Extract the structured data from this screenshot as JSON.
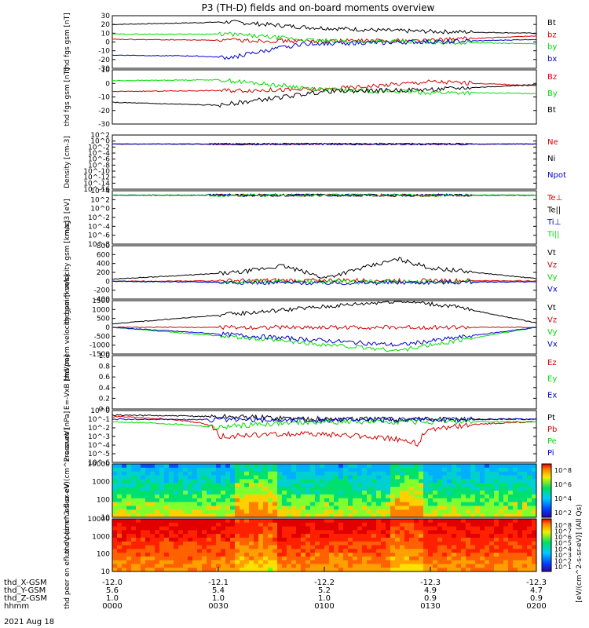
{
  "title": "P3 (TH-D) fields and on-board moments overview",
  "date_label": "2021 Aug 18",
  "colorbar_label": "[eV/(cm^2-s-sr-eV)] (All Qs)",
  "colors": {
    "black": "#000000",
    "red": "#d40000",
    "green": "#00dd00",
    "blue": "#0000cc"
  },
  "ephemeris": {
    "rows": [
      {
        "label": "thd_X-GSM",
        "values": [
          "-12.0",
          "-12.1",
          "-12.2",
          "-12.3",
          "-12.3"
        ]
      },
      {
        "label": "thd_Y-GSM",
        "values": [
          "5.6",
          "5.4",
          "5.2",
          "4.9",
          "4.7"
        ]
      },
      {
        "label": "thd_Z-GSM",
        "values": [
          "1.0",
          "1.0",
          "1.0",
          "0.9",
          "0.9"
        ]
      },
      {
        "label": "hhmm",
        "values": [
          "0000",
          "0030",
          "0100",
          "0130",
          "0200"
        ]
      }
    ]
  },
  "chart_data": [
    {
      "type": "line",
      "ylabel": "thd fgs gsm [nT]",
      "ylim": [
        -30,
        30
      ],
      "yticks": [
        "30",
        "20",
        "10",
        "0",
        "-10",
        "-20",
        "-30"
      ],
      "x_hours": [
        0,
        0.5,
        1.0,
        1.5,
        2.0
      ],
      "series": [
        {
          "name": "Bt",
          "color": "#000000",
          "x": [
            0,
            0.4,
            0.55,
            0.9,
            1.3,
            1.5,
            2.0
          ],
          "y": [
            20,
            22,
            23,
            17,
            13,
            12,
            10
          ]
        },
        {
          "name": "bz",
          "color": "#d40000",
          "x": [
            0,
            0.55,
            0.9,
            1.5,
            2.0
          ],
          "y": [
            3,
            2,
            1,
            2,
            7
          ]
        },
        {
          "name": "by",
          "color": "#00dd00",
          "x": [
            0,
            0.55,
            1.0,
            1.5,
            2.0
          ],
          "y": [
            9,
            9,
            1,
            0,
            -2
          ]
        },
        {
          "name": "bx",
          "color": "#0000cc",
          "x": [
            0,
            0.4,
            0.55,
            0.9,
            1.5,
            2.0
          ],
          "y": [
            -15,
            -16,
            -18,
            -2,
            0,
            3
          ]
        }
      ]
    },
    {
      "type": "line",
      "ylabel": "thd fgs gsm [nT]",
      "ylim": [
        -35,
        20
      ],
      "yticks": [
        "10",
        "0",
        "-10",
        "-20",
        "-30"
      ],
      "x_hours": [
        0,
        0.5,
        1.0,
        1.5,
        2.0
      ],
      "series": [
        {
          "name": "Bz",
          "color": "#d40000",
          "x": [
            0,
            0.5,
            1.0,
            1.5,
            2.0
          ],
          "y": [
            -2,
            -1,
            0,
            8,
            4
          ]
        },
        {
          "name": "By",
          "color": "#00dd00",
          "x": [
            0,
            0.5,
            1.0,
            1.5,
            2.0
          ],
          "y": [
            9,
            10,
            0,
            -3,
            -4
          ]
        },
        {
          "name": "Bt",
          "color": "#000000",
          "x": [
            0,
            0.5,
            1.0,
            1.5,
            2.0
          ],
          "y": [
            -13,
            -16,
            -2,
            0,
            5
          ]
        }
      ]
    },
    {
      "type": "line",
      "ylabel": "Density [cm-3]",
      "scale": "log",
      "yticks": [
        "10^2",
        "10^0",
        "10^-2",
        "10^-4",
        "10^-6",
        "10^-8",
        "10^-10",
        "10^-12",
        "10^-14",
        "10^-16"
      ],
      "series": [
        {
          "name": "Ne",
          "color": "#d40000",
          "x": [
            0,
            2.0
          ],
          "y": [
            0.1,
            0.1
          ]
        },
        {
          "name": "Ni",
          "color": "#000000",
          "x": [
            0,
            2.0
          ],
          "y": [
            0.1,
            0.1
          ]
        },
        {
          "name": "Npot",
          "color": "#0000cc",
          "x": [
            0,
            2.0
          ],
          "y": [
            0.1,
            0.1
          ]
        }
      ]
    },
    {
      "type": "line",
      "ylabel": "mag3 [eV]",
      "scale": "log",
      "yticks": [
        "10^4",
        "10^2",
        "10^0",
        "10^-2",
        "10^-4",
        "10^-6",
        "10^-8"
      ],
      "series": [
        {
          "name": "Te⊥",
          "color": "#d40000",
          "x": [
            0,
            2.0
          ],
          "y": [
            1000,
            1000
          ]
        },
        {
          "name": "Te||",
          "color": "#000000",
          "x": [
            0,
            2.0
          ],
          "y": [
            1000,
            1000
          ]
        },
        {
          "name": "Ti⊥",
          "color": "#0000cc",
          "x": [
            0,
            2.0
          ],
          "y": [
            1000,
            1000
          ]
        },
        {
          "name": "Ti||",
          "color": "#00dd00",
          "x": [
            0,
            2.0
          ],
          "y": [
            1000,
            1000
          ]
        }
      ]
    },
    {
      "type": "line",
      "ylabel": "thd peim velocity gsm [km/s]",
      "ylim": [
        -400,
        800
      ],
      "yticks": [
        "800",
        "600",
        "400",
        "200",
        "0",
        "-200",
        "-400"
      ],
      "series": [
        {
          "name": "Vt",
          "color": "#000000",
          "x": [
            0,
            0.6,
            0.8,
            1.0,
            1.35,
            1.5,
            2.0
          ],
          "y": [
            50,
            200,
            350,
            80,
            500,
            300,
            60
          ]
        },
        {
          "name": "Vz",
          "color": "#d40000",
          "x": [
            0,
            1.0,
            2.0
          ],
          "y": [
            0,
            20,
            10
          ]
        },
        {
          "name": "Vy",
          "color": "#00dd00",
          "x": [
            0,
            1.0,
            2.0
          ],
          "y": [
            0,
            -20,
            0
          ]
        },
        {
          "name": "Vx",
          "color": "#0000cc",
          "x": [
            0,
            1.0,
            2.0
          ],
          "y": [
            0,
            -40,
            -10
          ]
        }
      ]
    },
    {
      "type": "line",
      "ylabel": "thd peem velocity gsm [km/s]",
      "ylim": [
        -1500,
        1500
      ],
      "yticks": [
        "1500",
        "1000",
        "500",
        "0",
        "-500",
        "-1000",
        "-1500"
      ],
      "series": [
        {
          "name": "Vt",
          "color": "#000000",
          "x": [
            0,
            1.35,
            1.6,
            2.0
          ],
          "y": [
            200,
            1500,
            1200,
            250
          ]
        },
        {
          "name": "Vz",
          "color": "#d40000",
          "x": [
            0,
            2.0
          ],
          "y": [
            0,
            0
          ]
        },
        {
          "name": "Vy",
          "color": "#00dd00",
          "x": [
            0,
            1.35,
            2.0
          ],
          "y": [
            0,
            -1300,
            0
          ]
        },
        {
          "name": "Vx",
          "color": "#0000cc",
          "x": [
            0,
            1.35,
            2.0
          ],
          "y": [
            0,
            -1000,
            0
          ]
        }
      ]
    },
    {
      "type": "line",
      "ylabel": "E=-VxB [mV/m]",
      "ylim": [
        0,
        1.0
      ],
      "yticks": [
        "1.0",
        "0.8",
        "0.6",
        "0.4",
        "0.2",
        "0.0"
      ],
      "series": [
        {
          "name": "Ez",
          "color": "#d40000",
          "x": [],
          "y": []
        },
        {
          "name": "Ey",
          "color": "#00dd00",
          "x": [],
          "y": []
        },
        {
          "name": "Ex",
          "color": "#0000cc",
          "x": [],
          "y": []
        }
      ]
    },
    {
      "type": "line",
      "ylabel": "Pressure [nPa]",
      "scale": "log",
      "yticks": [
        "10^0",
        "10^-1",
        "10^-2",
        "10^-3",
        "10^-4",
        "10^-5",
        "10^-6"
      ],
      "series": [
        {
          "name": "Pt",
          "color": "#000000",
          "x": [
            0,
            0.5,
            1.0,
            2.0
          ],
          "y": [
            0.3,
            0.2,
            0.1,
            0.1
          ]
        },
        {
          "name": "Pb",
          "color": "#d40000",
          "x": [
            0,
            0.5,
            0.9,
            1.45,
            2.0
          ],
          "y": [
            0.2,
            0.001,
            0.002,
            0.0001,
            0.05
          ]
        },
        {
          "name": "Pe",
          "color": "#00dd00",
          "x": [
            0,
            0.5,
            1.0,
            2.0
          ],
          "y": [
            0.05,
            0.01,
            0.05,
            0.05
          ]
        },
        {
          "name": "Pi",
          "color": "#0000cc",
          "x": [
            0,
            1.0,
            2.0
          ],
          "y": [
            0.1,
            0.08,
            0.1
          ]
        }
      ]
    },
    {
      "type": "heatmap",
      "ylabel": "thd peir en eflux eV (cm^2-s-sr-eV)",
      "scale": "log",
      "yticks": [
        "10000",
        "1000",
        "100",
        "10"
      ],
      "colorbar_ticks": [
        "10^8",
        "10^6",
        "10^4",
        "10^2"
      ]
    },
    {
      "type": "heatmap",
      "ylabel": "thd peer en eflux eV (cm^2-s-sr-eV)",
      "scale": "log",
      "yticks": [
        "10000",
        "1000",
        "100",
        "10"
      ],
      "colorbar_ticks": [
        "10^8",
        "10^7",
        "10^6",
        "10^5",
        "10^4",
        "10^3",
        "10^2",
        "10^1"
      ]
    }
  ]
}
